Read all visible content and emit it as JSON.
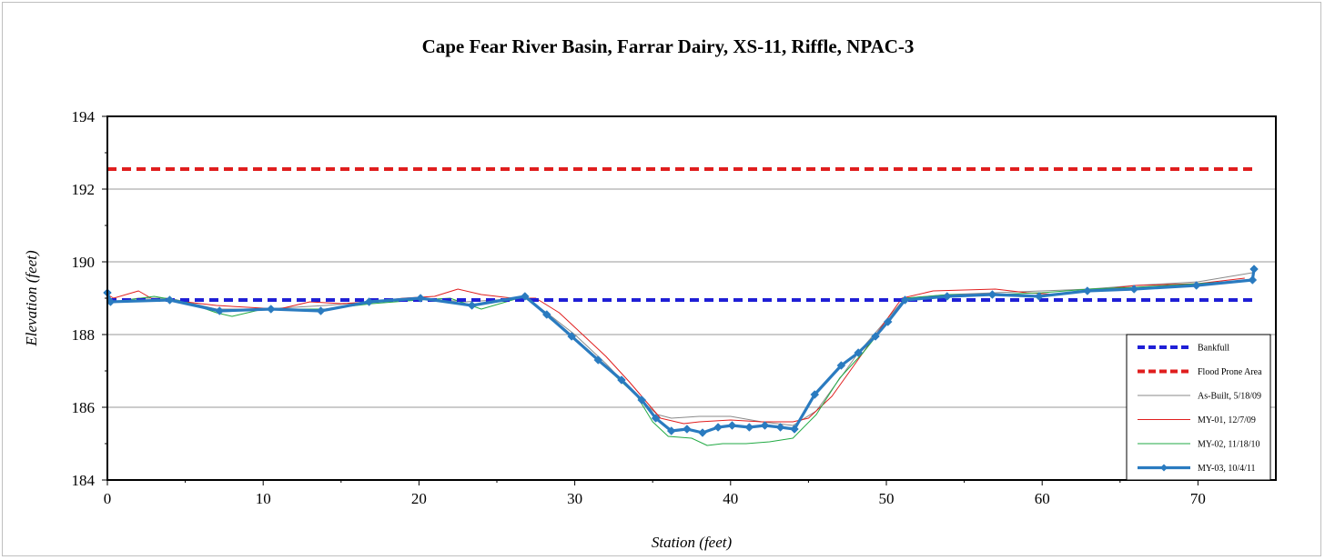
{
  "chart_data": {
    "type": "line",
    "title": "Cape Fear River Basin, Farrar Dairy, XS-11, Riffle, NPAC-3",
    "xlabel": "Station (feet)",
    "ylabel": "Elevation (feet)",
    "xlim": [
      0,
      75
    ],
    "ylim": [
      184,
      194
    ],
    "x_ticks": [
      "0",
      "10",
      "20",
      "30",
      "40",
      "50",
      "60",
      "70"
    ],
    "y_ticks": [
      "184",
      "186",
      "188",
      "190",
      "192",
      "194"
    ],
    "x_tick_values": [
      0,
      10,
      20,
      30,
      40,
      50,
      60,
      70
    ],
    "y_tick_values": [
      184,
      186,
      188,
      190,
      192,
      194
    ],
    "grid": "horizontal major gridlines",
    "legend_position": "bottom-right",
    "series": [
      {
        "name": "Bankfull",
        "color": "#1f1fd6",
        "style": "dashed",
        "x": [
          0,
          73.5
        ],
        "y": [
          188.95,
          188.95
        ]
      },
      {
        "name": "Flood Prone Area",
        "color": "#e01e1e",
        "style": "dashed",
        "x": [
          0,
          73.5
        ],
        "y": [
          192.55,
          192.55
        ]
      },
      {
        "name": "As-Built, 5/18/09",
        "color": "#8a8a8a",
        "style": "thin",
        "x": [
          0,
          0.4,
          2,
          4,
          7,
          10,
          14,
          17,
          20,
          23,
          26.8,
          28.2,
          30,
          32,
          34,
          35.3,
          36.2,
          38,
          40,
          42,
          44,
          45.5,
          47.2,
          48.2,
          49.2,
          50.2,
          51.2,
          54,
          57,
          60,
          63,
          66,
          70,
          73.5
        ],
        "y": [
          189.1,
          188.9,
          189.0,
          189.0,
          188.7,
          188.7,
          188.8,
          188.9,
          189.0,
          188.9,
          189.0,
          188.6,
          188.0,
          187.2,
          186.3,
          185.8,
          185.7,
          185.75,
          185.75,
          185.6,
          185.5,
          185.9,
          186.9,
          187.5,
          188.0,
          188.5,
          189.0,
          189.1,
          189.15,
          189.2,
          189.25,
          189.35,
          189.45,
          189.7
        ]
      },
      {
        "name": "MY-01, 12/7/09",
        "color": "#e01e1e",
        "style": "thin",
        "x": [
          0,
          0.4,
          2,
          3,
          5,
          7,
          9,
          11,
          13,
          15,
          17,
          19,
          21,
          22.5,
          24,
          26,
          27.5,
          29,
          30.5,
          32,
          33.5,
          34.5,
          35.5,
          37,
          38,
          40,
          42,
          44,
          45,
          46.5,
          48,
          49.5,
          51,
          53,
          57,
          59,
          61,
          63,
          66,
          70,
          73
        ],
        "y": [
          189.1,
          189.0,
          189.2,
          188.95,
          188.9,
          188.8,
          188.75,
          188.7,
          188.9,
          188.85,
          188.9,
          189.0,
          189.05,
          189.25,
          189.1,
          189.0,
          189.0,
          188.6,
          188.0,
          187.4,
          186.7,
          186.2,
          185.7,
          185.55,
          185.6,
          185.65,
          185.6,
          185.6,
          185.7,
          186.3,
          187.2,
          188.1,
          189.0,
          189.2,
          189.25,
          189.15,
          189.1,
          189.2,
          189.35,
          189.4,
          189.55
        ]
      },
      {
        "name": "MY-02, 11/18/10",
        "color": "#22aa44",
        "style": "thin",
        "x": [
          0,
          0.4,
          3,
          5,
          7,
          8,
          10,
          14,
          17,
          20,
          22,
          24,
          26.8,
          28.5,
          30,
          32,
          34,
          35,
          36,
          37.5,
          38.5,
          39.5,
          41,
          42.5,
          44,
          45.5,
          47,
          48.5,
          50,
          51.2,
          54,
          57,
          60,
          63,
          66,
          70,
          73.5
        ],
        "y": [
          189.1,
          188.9,
          189.05,
          188.9,
          188.6,
          188.5,
          188.7,
          188.7,
          188.85,
          188.95,
          189.0,
          188.7,
          189.05,
          188.4,
          187.9,
          187.1,
          186.3,
          185.6,
          185.2,
          185.15,
          184.95,
          185.0,
          185.0,
          185.05,
          185.15,
          185.8,
          186.8,
          187.5,
          188.3,
          189.0,
          189.1,
          189.1,
          189.15,
          189.25,
          189.3,
          189.4,
          189.5
        ]
      },
      {
        "name": "MY-03, 10/4/11",
        "color": "#2a7bc0",
        "style": "thick-markers",
        "x": [
          0,
          0.2,
          4,
          7.2,
          10.5,
          13.7,
          16.8,
          20.1,
          23.4,
          26.8,
          28.2,
          29.8,
          31.5,
          33,
          34.3,
          35.2,
          36.2,
          37.2,
          38.2,
          39.2,
          40.1,
          41.2,
          42.2,
          43.2,
          44.1,
          45.4,
          47.1,
          48.2,
          49.3,
          50.1,
          51.2,
          53.9,
          56.8,
          59.8,
          62.9,
          65.9,
          69.9,
          73.5,
          73.6
        ],
        "y": [
          189.15,
          188.9,
          188.95,
          188.65,
          188.7,
          188.65,
          188.9,
          189.0,
          188.8,
          189.05,
          188.55,
          187.95,
          187.3,
          186.75,
          186.2,
          185.7,
          185.35,
          185.4,
          185.3,
          185.45,
          185.5,
          185.45,
          185.5,
          185.45,
          185.4,
          186.35,
          187.15,
          187.5,
          187.95,
          188.35,
          188.95,
          189.05,
          189.1,
          189.05,
          189.2,
          189.25,
          189.35,
          189.5,
          189.8
        ]
      }
    ]
  }
}
